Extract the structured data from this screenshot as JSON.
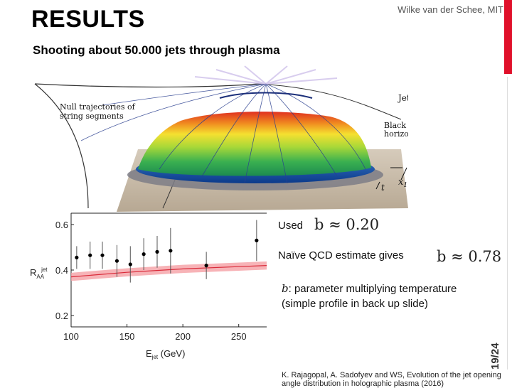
{
  "slide": {
    "title": "RESULTS",
    "author": "Wilke van der Schee, MIT",
    "subtitle": "Shooting about 50.000 jets through plasma",
    "slide_number": "19/24",
    "footer": "K. Rajagopal, A. Sadofyev and WS, Evolution of the jet opening angle distribution in holographic plasma (2016)"
  },
  "figure3d": {
    "labels": {
      "null_traj_line1": "Null trajectories of",
      "null_traj_line2": "string segments",
      "jet_energy": "Jet energy",
      "bh_line1": "Black hole",
      "bh_line2": "horizon",
      "x1": "x",
      "x1_sub": "1",
      "t": "t"
    }
  },
  "text": {
    "used_label": "Used",
    "used_formula": "b ≈ 0.20",
    "naive_label": "Naïve QCD estimate gives",
    "naive_formula": "b ≈ 0.78",
    "param_var": "b",
    "param_line1": ": parameter multiplying temperature",
    "param_line2": "(simple profile in back up slide)"
  },
  "chart_data": {
    "type": "scatter",
    "xlabel": "E_jet (GeV)",
    "ylabel": "R_AA^jet",
    "xlim": [
      100,
      275
    ],
    "ylim": [
      0.15,
      0.65
    ],
    "x_ticks": [
      100,
      150,
      200,
      250
    ],
    "y_ticks": [
      0.2,
      0.4,
      0.6
    ],
    "x_tick_labels": [
      "100",
      "150",
      "200",
      "250"
    ],
    "y_tick_labels": [
      "0.2",
      "0.4",
      "0.6"
    ],
    "points": [
      {
        "x": 105,
        "y": 0.455,
        "err": 0.05
      },
      {
        "x": 117,
        "y": 0.465,
        "err": 0.06
      },
      {
        "x": 128,
        "y": 0.465,
        "err": 0.06
      },
      {
        "x": 141,
        "y": 0.44,
        "err": 0.07
      },
      {
        "x": 153,
        "y": 0.425,
        "err": 0.08
      },
      {
        "x": 165,
        "y": 0.47,
        "err": 0.07
      },
      {
        "x": 177,
        "y": 0.48,
        "err": 0.07
      },
      {
        "x": 189,
        "y": 0.485,
        "err": 0.1
      },
      {
        "x": 221,
        "y": 0.42,
        "err": 0.06
      },
      {
        "x": 266,
        "y": 0.53,
        "err": 0.09
      }
    ],
    "band": {
      "x": [
        100,
        150,
        200,
        250,
        275
      ],
      "y": [
        0.37,
        0.39,
        0.405,
        0.415,
        0.42
      ],
      "width": 0.018
    },
    "colors": {
      "band": "#f5a0a5",
      "line": "#d92b3a",
      "points": "#000000"
    }
  }
}
